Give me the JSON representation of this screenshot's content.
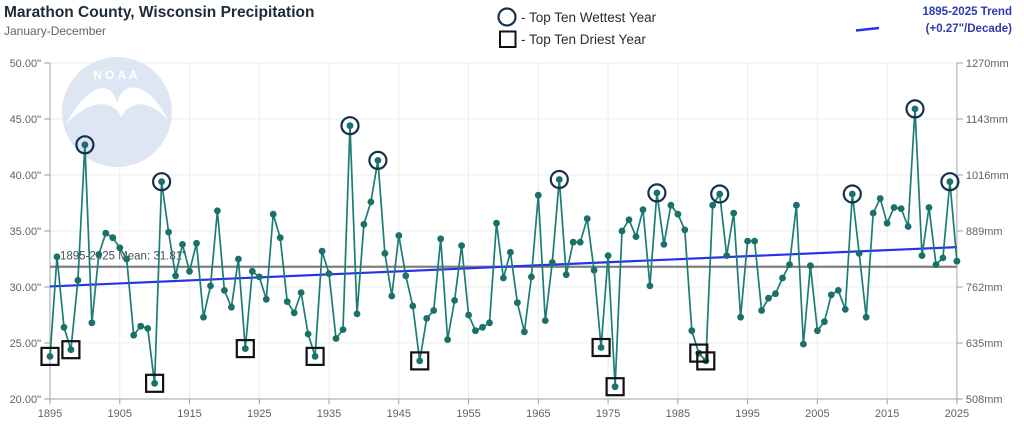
{
  "header": {
    "title": "Marathon County, Wisconsin Precipitation",
    "subtitle": "January-December"
  },
  "legend": {
    "wettest_label": "- Top Ten Wettest Year",
    "driest_label": "- Top Ten Driest Year",
    "trend_line1": "1895-2025 Trend",
    "trend_line2": "(+0.27\"/Decade)"
  },
  "watermark": {
    "text": "NOAA"
  },
  "annotations": {
    "mean_label": "1895-2025 Mean: 31.81\""
  },
  "colors": {
    "series": "#1d7d75",
    "dot": "#19716a",
    "wettest_ring": "#16314e",
    "driest_square": "#111111",
    "mean_line": "#7f7f7f",
    "trend_line": "#2633e8",
    "trend_text": "#2c3bb0",
    "grid": "#ececec",
    "axis": "#b3b3b3",
    "tick": "#9aa0a6",
    "watermark_bg": "#dce5f2"
  },
  "chart_data": {
    "type": "line",
    "title": "Marathon County, Wisconsin Precipitation",
    "subtitle": "January-December",
    "series_name": "Annual precipitation (inches)",
    "x_start_year": 1895,
    "x_end_year": 2025,
    "x": [
      1895,
      1896,
      1897,
      1898,
      1899,
      1900,
      1901,
      1902,
      1903,
      1904,
      1905,
      1906,
      1907,
      1908,
      1909,
      1910,
      1911,
      1912,
      1913,
      1914,
      1915,
      1916,
      1917,
      1918,
      1919,
      1920,
      1921,
      1922,
      1923,
      1924,
      1925,
      1926,
      1927,
      1928,
      1929,
      1930,
      1931,
      1932,
      1933,
      1934,
      1935,
      1936,
      1937,
      1938,
      1939,
      1940,
      1941,
      1942,
      1943,
      1944,
      1945,
      1946,
      1947,
      1948,
      1949,
      1950,
      1951,
      1952,
      1953,
      1954,
      1955,
      1956,
      1957,
      1958,
      1959,
      1960,
      1961,
      1962,
      1963,
      1964,
      1965,
      1966,
      1967,
      1968,
      1969,
      1970,
      1971,
      1972,
      1973,
      1974,
      1975,
      1976,
      1977,
      1978,
      1979,
      1980,
      1981,
      1982,
      1983,
      1984,
      1985,
      1986,
      1987,
      1988,
      1989,
      1990,
      1991,
      1992,
      1993,
      1994,
      1995,
      1996,
      1997,
      1998,
      1999,
      2000,
      2001,
      2002,
      2003,
      2004,
      2005,
      2006,
      2007,
      2008,
      2009,
      2010,
      2011,
      2012,
      2013,
      2014,
      2015,
      2016,
      2017,
      2018,
      2019,
      2020,
      2021,
      2022,
      2023,
      2024,
      2025
    ],
    "values": [
      23.8,
      32.7,
      26.4,
      24.4,
      30.6,
      42.7,
      26.8,
      32.9,
      34.8,
      34.4,
      33.5,
      32.5,
      25.7,
      26.5,
      26.3,
      21.4,
      39.4,
      34.9,
      31.0,
      33.8,
      31.4,
      33.9,
      27.3,
      30.1,
      36.8,
      29.7,
      28.2,
      32.5,
      24.5,
      31.4,
      30.9,
      28.9,
      36.5,
      34.4,
      28.7,
      27.7,
      29.5,
      25.8,
      23.8,
      33.2,
      31.2,
      25.4,
      26.2,
      44.4,
      27.6,
      35.6,
      37.6,
      41.3,
      33.0,
      29.2,
      34.6,
      31.0,
      28.3,
      23.4,
      27.2,
      27.9,
      34.3,
      25.3,
      28.8,
      33.7,
      27.5,
      26.1,
      26.4,
      26.8,
      35.7,
      30.8,
      33.1,
      28.6,
      26.0,
      30.9,
      38.2,
      27.0,
      32.2,
      39.6,
      31.1,
      34.0,
      34.0,
      36.1,
      31.5,
      24.6,
      32.8,
      21.1,
      35.0,
      36.0,
      34.5,
      36.9,
      30.1,
      38.4,
      33.8,
      37.3,
      36.5,
      35.1,
      26.1,
      24.1,
      23.4,
      37.3,
      38.3,
      32.8,
      36.6,
      27.3,
      34.1,
      34.1,
      27.9,
      29.0,
      29.4,
      30.8,
      32.0,
      37.3,
      24.9,
      31.9,
      26.1,
      26.9,
      29.3,
      29.7,
      28.0,
      38.3,
      33.0,
      27.3,
      36.6,
      37.9,
      35.7,
      37.1,
      37.0,
      35.4,
      45.9,
      32.8,
      37.1,
      32.0,
      32.6,
      39.4,
      32.3
    ],
    "top_ten_wettest_years": [
      1900,
      1911,
      1938,
      1942,
      1968,
      1982,
      1991,
      2010,
      2019,
      2024
    ],
    "top_ten_driest_years": [
      1895,
      1898,
      1910,
      1923,
      1933,
      1948,
      1974,
      1976,
      1988,
      1989
    ],
    "mean": 31.81,
    "trend_per_decade_inches": 0.27,
    "trend_start_value": 30.05,
    "trend_end_value": 33.56,
    "ylim_inches": [
      20,
      50
    ],
    "ylim_mm": [
      508,
      1270
    ],
    "y_tick_values": [
      50,
      45,
      40,
      35,
      30,
      25,
      20
    ],
    "y_tick_labels_in": [
      "50.00\"",
      "45.00\"",
      "40.00\"",
      "35.00\"",
      "30.00\"",
      "25.00\"",
      "20.00\""
    ],
    "y_tick_labels_mm": [
      "1270mm",
      "1143mm",
      "1016mm",
      "889mm",
      "762mm",
      "635mm",
      "508mm"
    ],
    "x_tick_years": [
      1895,
      1905,
      1915,
      1925,
      1935,
      1945,
      1955,
      1965,
      1975,
      1985,
      1995,
      2005,
      2015,
      2025
    ],
    "grid": true,
    "legend_position": "top"
  }
}
